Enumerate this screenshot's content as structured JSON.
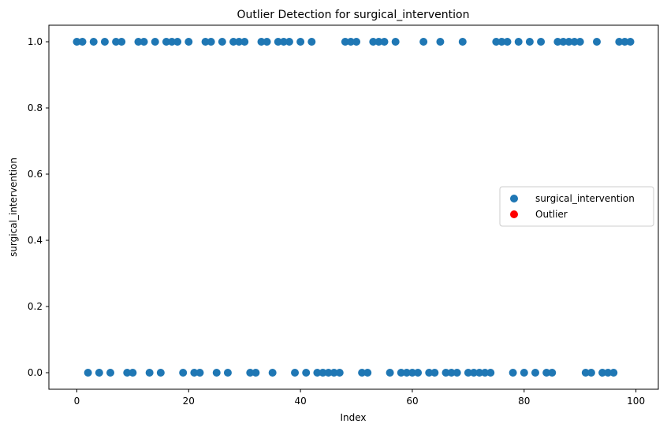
{
  "chart_data": {
    "type": "scatter",
    "title": "Outlier Detection for surgical_intervention",
    "xlabel": "Index",
    "ylabel": "surgical_intervention",
    "xlim": [
      -5,
      104
    ],
    "ylim": [
      -0.05,
      1.05
    ],
    "xticks": [
      0,
      20,
      40,
      60,
      80,
      100
    ],
    "xtick_labels": [
      "0",
      "20",
      "40",
      "60",
      "80",
      "100"
    ],
    "yticks": [
      0.0,
      0.2,
      0.4,
      0.6,
      0.8,
      1.0
    ],
    "ytick_labels": [
      "0.0",
      "0.2",
      "0.4",
      "0.6",
      "0.8",
      "1.0"
    ],
    "grid": false,
    "legend_position": "center-right",
    "series": [
      {
        "name": "surgical_intervention",
        "color": "#1f77b4",
        "x": [
          0,
          1,
          2,
          3,
          4,
          5,
          6,
          7,
          8,
          9,
          10,
          11,
          12,
          13,
          14,
          15,
          16,
          17,
          18,
          19,
          20,
          21,
          22,
          23,
          24,
          25,
          26,
          27,
          28,
          29,
          30,
          31,
          32,
          33,
          34,
          35,
          36,
          37,
          38,
          39,
          40,
          41,
          42,
          43,
          44,
          45,
          46,
          47,
          48,
          49,
          50,
          51,
          52,
          53,
          54,
          55,
          56,
          57,
          58,
          59,
          60,
          61,
          62,
          63,
          64,
          65,
          66,
          67,
          68,
          69,
          70,
          71,
          72,
          73,
          74,
          75,
          76,
          77,
          78,
          79,
          80,
          81,
          82,
          83,
          84,
          85,
          86,
          87,
          88,
          89,
          90,
          91,
          92,
          93,
          94,
          95,
          96,
          97,
          98,
          99
        ],
        "y": [
          1,
          1,
          0,
          1,
          0,
          1,
          0,
          1,
          1,
          0,
          0,
          1,
          1,
          0,
          1,
          0,
          1,
          1,
          1,
          0,
          1,
          0,
          0,
          1,
          1,
          0,
          1,
          0,
          1,
          1,
          1,
          0,
          0,
          1,
          1,
          0,
          1,
          1,
          1,
          0,
          1,
          0,
          1,
          0,
          0,
          0,
          0,
          0,
          1,
          1,
          1,
          0,
          0,
          1,
          1,
          1,
          0,
          1,
          0,
          0,
          0,
          0,
          1,
          0,
          0,
          1,
          0,
          0,
          0,
          1,
          0,
          0,
          0,
          0,
          0,
          1,
          1,
          1,
          0,
          1,
          0,
          1,
          0,
          1,
          0,
          0,
          1,
          1,
          1,
          1,
          1,
          0,
          0,
          1,
          0,
          0,
          0,
          1,
          1,
          1
        ]
      },
      {
        "name": "Outlier",
        "color": "#ff0000",
        "x": [],
        "y": []
      }
    ]
  }
}
